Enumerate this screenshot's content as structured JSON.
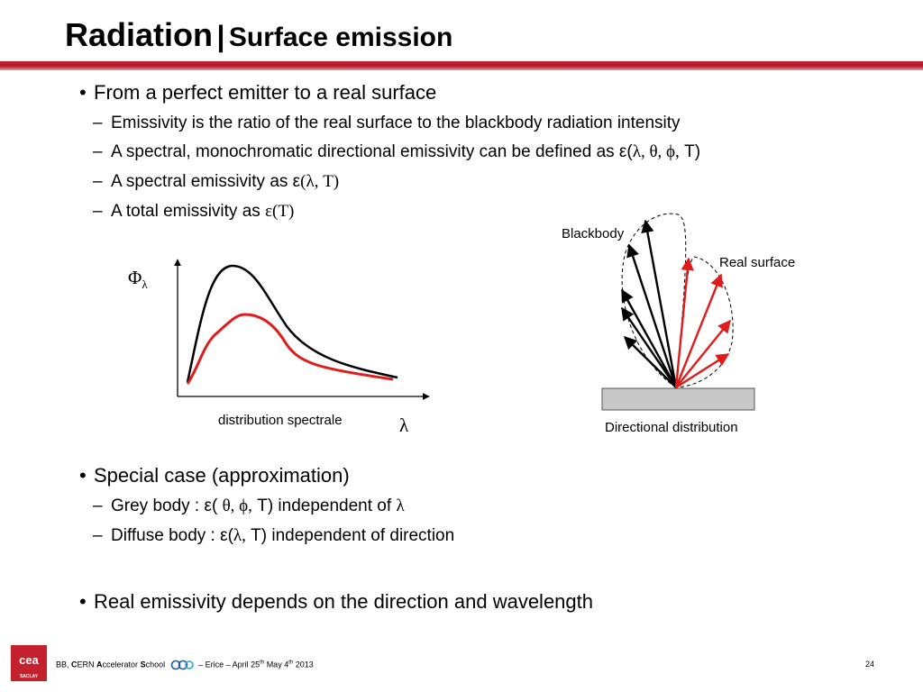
{
  "title": {
    "main": "Radiation",
    "separator": "|",
    "sub": "Surface emission"
  },
  "bullets": {
    "b1": "From a perfect emitter to a real surface",
    "b1_sub1": "Emissivity is the ratio of the real surface to the blackbody radiation intensity",
    "b1_sub2_text": "A spectral, monochromatic directional emissivity can be defined as ε(",
    "b1_sub2_math": "λ, θ, ϕ,",
    "b1_sub2_end": " T)",
    "b1_sub3_text": "A spectral emissivity as ε",
    "b1_sub3_math": "(λ, T)",
    "b1_sub4_text": "A total emissivity as ",
    "b1_sub4_math": "ε(T)",
    "b2": "Special case (approximation)",
    "b2_sub1_text": "Grey body : ε( ",
    "b2_sub1_math": "θ, ϕ,",
    "b2_sub1_end": " T) independent of ",
    "b2_sub1_lambda": "λ",
    "b2_sub2_text": "Diffuse body : ε(",
    "b2_sub2_math": "λ,",
    "b2_sub2_end": " T) independent of direction",
    "b3": "Real emissivity depends on the direction and wavelength"
  },
  "figure_left": {
    "y_symbol": "Φ",
    "y_subscript": "λ",
    "x_caption": "distribution spectrale",
    "x_symbol": "λ",
    "colors": {
      "blackbody": "#000000",
      "real": "#e01b1b"
    }
  },
  "figure_right": {
    "blackbody_label": "Blackbody",
    "real_label": "Real surface",
    "caption": "Directional distribution",
    "surface_color": "#c8c8c8"
  },
  "footer": {
    "logo_text": "cea",
    "logo_sub": "SACLAY",
    "bb": "BB, ",
    "c": "C",
    "ern": "ERN ",
    "a": "A",
    "ccel": "ccelerator ",
    "s": "S",
    "chool": "chool",
    "event": "– Erice – April 25",
    "th1": "th",
    "may": " May 4",
    "th2": "th",
    "year": " 2013",
    "page": "24"
  }
}
